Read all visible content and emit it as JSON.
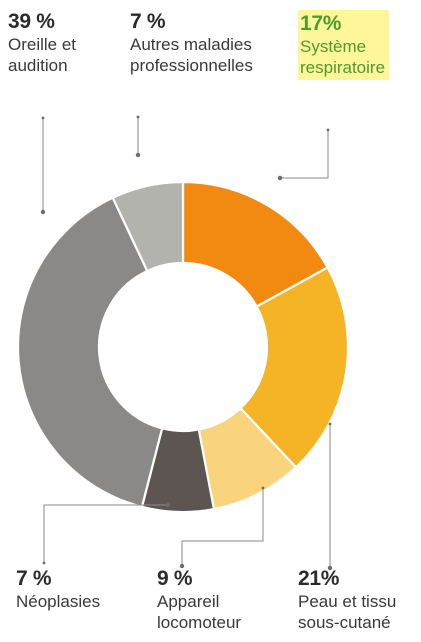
{
  "chart_data": {
    "type": "donut",
    "unit": "%",
    "slices": [
      {
        "id": "respiratoire",
        "percent": "17%",
        "value": 17,
        "lines": [
          "Système",
          "respiratoire"
        ],
        "color": "#f28a12",
        "highlighted": true
      },
      {
        "id": "peau",
        "percent": "21%",
        "value": 21,
        "lines": [
          "Peau et tissu",
          "sous-cutané"
        ],
        "color": "#f4b425"
      },
      {
        "id": "appareil",
        "percent": "9 %",
        "value": 9,
        "lines": [
          "Appareil",
          "locomoteur"
        ],
        "color": "#fad47c"
      },
      {
        "id": "neoplasies",
        "percent": "7 %",
        "value": 7,
        "lines": [
          "Néoplasies"
        ],
        "color": "#5d5552"
      },
      {
        "id": "oreille",
        "percent": "39 %",
        "value": 39,
        "lines": [
          "Oreille et",
          "audition"
        ],
        "color": "#8b8988"
      },
      {
        "id": "autres",
        "percent": "7 %",
        "value": 7,
        "lines": [
          "Autres maladies",
          "professionnelles"
        ],
        "color": "#b2b3ac"
      }
    ]
  }
}
